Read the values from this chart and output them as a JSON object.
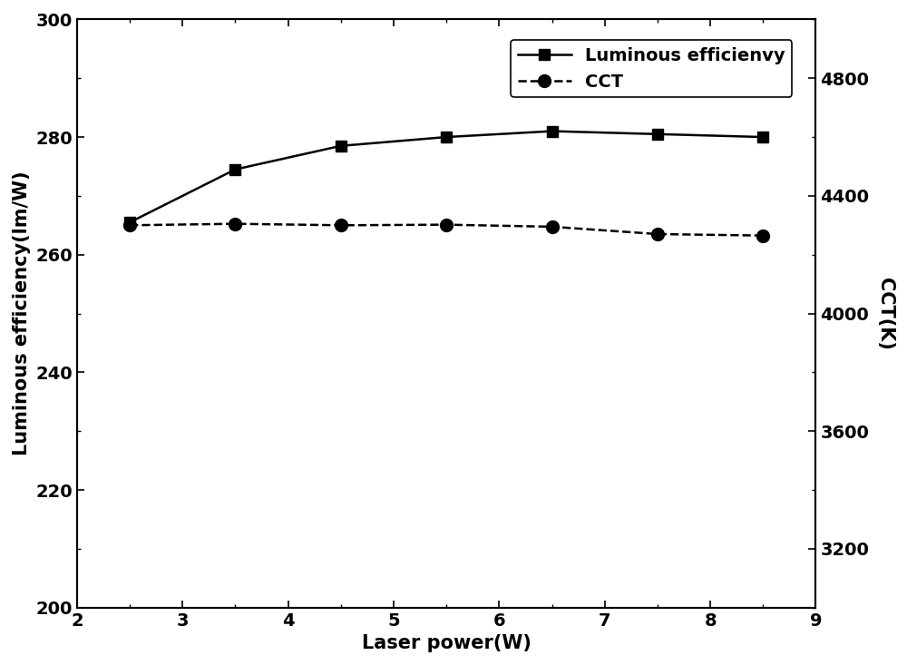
{
  "x": [
    2.5,
    3.5,
    4.5,
    5.5,
    6.5,
    7.5,
    8.5
  ],
  "luminous_efficiency": [
    265.5,
    274.5,
    278.5,
    280.0,
    281.0,
    280.5,
    280.0
  ],
  "cct": [
    4300,
    4305,
    4300,
    4302,
    4295,
    4270,
    4265
  ],
  "xlabel": "Laser power(W)",
  "ylabel_left": "Luminous efficiency(lm/W)",
  "ylabel_right": "CCT(K)",
  "legend_luminous": "Luminous efficienvy",
  "legend_cct": "CCT",
  "xlim": [
    2,
    9
  ],
  "ylim_left": [
    200,
    300
  ],
  "ylim_right": [
    3000,
    5000
  ],
  "xticks": [
    2,
    3,
    4,
    5,
    6,
    7,
    8,
    9
  ],
  "yticks_left": [
    200,
    220,
    240,
    260,
    280,
    300
  ],
  "yticks_right": [
    3200,
    3600,
    4000,
    4400,
    4800
  ],
  "line_color": "#000000",
  "bg_color": "#ffffff",
  "fontsize_label": 15,
  "fontsize_tick": 14,
  "fontsize_legend": 14
}
